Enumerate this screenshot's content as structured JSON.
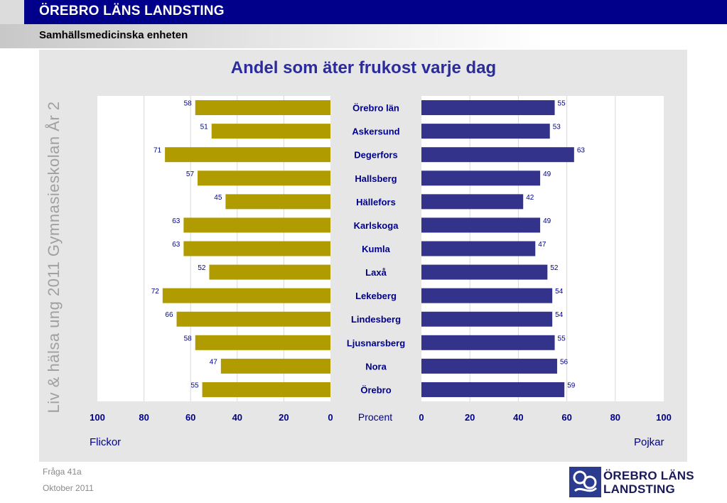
{
  "header": {
    "org": "ÖREBRO LÄNS LANDSTING",
    "unit": "Samhällsmedicinska enheten"
  },
  "side_label": "Liv & hälsa ung 2011 Gymnasieskolan År 2",
  "footer": {
    "question": "Fråga 41a",
    "date": "Oktober 2011"
  },
  "logo": {
    "line1": "ÖREBRO LÄNS",
    "line2": "LANDSTING"
  },
  "colors": {
    "flickor": "#b09b00",
    "pojkar": "#33338c",
    "text_blue": "#00008b"
  },
  "chart_data": {
    "type": "bar",
    "orientation": "horizontal-butterfly",
    "title": "Andel som äter frukost varje dag",
    "center_axis_label": "Procent",
    "categories": [
      "Örebro län",
      "Askersund",
      "Degerfors",
      "Hallsberg",
      "Hällefors",
      "Karlskoga",
      "Kumla",
      "Laxå",
      "Lekeberg",
      "Lindesberg",
      "Ljusnarsberg",
      "Nora",
      "Örebro"
    ],
    "series": [
      {
        "name": "Flickor",
        "values": [
          58,
          51,
          71,
          57,
          45,
          63,
          63,
          52,
          72,
          66,
          58,
          47,
          55
        ]
      },
      {
        "name": "Pojkar",
        "values": [
          55,
          53,
          63,
          49,
          42,
          49,
          47,
          52,
          54,
          54,
          55,
          56,
          59
        ]
      }
    ],
    "xlim": [
      0,
      100
    ],
    "ticks": [
      0,
      20,
      40,
      60,
      80,
      100
    ],
    "grid": true
  }
}
